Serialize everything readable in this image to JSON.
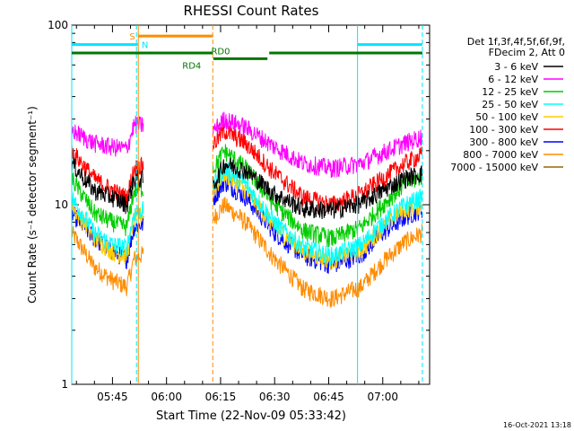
{
  "chart_data": {
    "type": "line",
    "title": "RHESSI Count Rates",
    "xlabel": "Start Time (22-Nov-09 05:33:42)",
    "ylabel": "Count Rate (s⁻¹ detector segment⁻¹)",
    "y_scale": "log",
    "ylim": [
      1,
      100
    ],
    "xlim": [
      "05:33:42",
      "07:13:00"
    ],
    "x_ticks": [
      "05:45",
      "06:00",
      "06:15",
      "06:30",
      "06:45",
      "07:00"
    ],
    "y_ticks": [
      "1",
      "10",
      "100"
    ],
    "grid": false,
    "legend_position": "top-right",
    "legend_header": [
      "Det 1f,3f,4f,5f,6f,9f,",
      "FDecim 2, Att 0"
    ],
    "timestamp": "16-Oct-2021 13:18",
    "gap_segments": [
      [
        "05:53:40",
        "06:12:50"
      ]
    ],
    "series": [
      {
        "name": "3 - 6 keV",
        "color": "#000000",
        "x": [
          "05:33:42",
          "05:40:00",
          "05:45:00",
          "05:49:00",
          "05:51:00",
          "06:13:10",
          "06:16:00",
          "06:22:00",
          "06:30:00",
          "06:38:00",
          "06:46:00",
          "06:54:00",
          "07:00:00",
          "07:06:00",
          "07:11:00"
        ],
        "y": [
          17,
          12,
          11,
          10,
          14,
          13,
          17,
          15.5,
          11.5,
          9.5,
          9.3,
          10.2,
          12,
          14,
          15
        ]
      },
      {
        "name": "6 - 12 keV",
        "color": "#ff00ff",
        "x": [
          "05:33:42",
          "05:40:00",
          "05:45:00",
          "05:49:00",
          "05:51:00",
          "06:13:10",
          "06:16:00",
          "06:22:00",
          "06:30:00",
          "06:38:00",
          "06:46:00",
          "06:54:00",
          "07:00:00",
          "07:06:00",
          "07:11:00"
        ],
        "y": [
          26,
          22,
          21,
          20.5,
          28,
          26,
          30,
          27,
          21,
          17,
          16,
          17,
          19.5,
          22,
          24
        ]
      },
      {
        "name": "12 - 25 keV",
        "color": "#00cc00",
        "x": [
          "05:33:42",
          "05:40:00",
          "05:45:00",
          "05:49:00",
          "05:51:00",
          "06:13:10",
          "06:16:00",
          "06:22:00",
          "06:30:00",
          "06:38:00",
          "06:46:00",
          "06:54:00",
          "07:00:00",
          "07:06:00",
          "07:11:00"
        ],
        "y": [
          14,
          9,
          8,
          7.5,
          12,
          16,
          20,
          16,
          10,
          7.2,
          6.5,
          7.5,
          10,
          13,
          14.5
        ]
      },
      {
        "name": "25 - 50 keV",
        "color": "#00ffff",
        "x": [
          "05:33:42",
          "05:40:00",
          "05:45:00",
          "05:49:00",
          "05:51:00",
          "06:13:10",
          "06:16:00",
          "06:22:00",
          "06:30:00",
          "06:38:00",
          "06:46:00",
          "06:54:00",
          "07:00:00",
          "07:06:00",
          "07:11:00"
        ],
        "y": [
          11,
          7,
          6,
          5.8,
          9,
          13,
          16,
          13,
          8,
          5.8,
          5.2,
          6,
          8,
          10,
          11
        ]
      },
      {
        "name": "50 - 100 keV",
        "color": "#ffcc00",
        "x": [
          "05:33:42",
          "05:40:00",
          "05:45:00",
          "05:49:00",
          "05:51:00",
          "06:13:10",
          "06:16:00",
          "06:22:00",
          "06:30:00",
          "06:38:00",
          "06:46:00",
          "06:54:00",
          "07:00:00",
          "07:06:00",
          "07:11:00"
        ],
        "y": [
          10,
          6.5,
          5.5,
          5.2,
          8.5,
          12,
          15,
          12,
          7.5,
          5.5,
          4.9,
          5.6,
          7.5,
          9.5,
          10
        ]
      },
      {
        "name": "100 - 300 keV",
        "color": "#ff0000",
        "x": [
          "05:33:42",
          "05:40:00",
          "05:45:00",
          "05:49:00",
          "05:51:00",
          "06:13:10",
          "06:16:00",
          "06:22:00",
          "06:30:00",
          "06:38:00",
          "06:46:00",
          "06:54:00",
          "07:00:00",
          "07:06:00",
          "07:11:00"
        ],
        "y": [
          20,
          14,
          12,
          11,
          16,
          22,
          26,
          22,
          15,
          11,
          10,
          11.5,
          14,
          17,
          19
        ]
      },
      {
        "name": "300 - 800 keV",
        "color": "#0000ff",
        "x": [
          "05:33:42",
          "05:40:00",
          "05:45:00",
          "05:49:00",
          "05:51:00",
          "06:13:10",
          "06:16:00",
          "06:22:00",
          "06:30:00",
          "06:38:00",
          "06:46:00",
          "06:54:00",
          "07:00:00",
          "07:06:00",
          "07:11:00"
        ],
        "y": [
          9,
          6.5,
          5.5,
          5,
          7.5,
          11,
          13.5,
          11,
          7,
          5.2,
          4.6,
          5.3,
          7,
          8.5,
          9.5
        ]
      },
      {
        "name": "800 - 7000 keV",
        "color": "#ff8c00",
        "x": [
          "05:33:42",
          "05:40:00",
          "05:45:00",
          "05:49:00",
          "05:51:00",
          "06:13:10",
          "06:16:00",
          "06:22:00",
          "06:30:00",
          "06:38:00",
          "06:46:00",
          "06:54:00",
          "07:00:00",
          "07:06:00",
          "07:11:00"
        ],
        "y": [
          7,
          4.5,
          3.8,
          3.5,
          5,
          8.5,
          10,
          8,
          5,
          3.4,
          3.0,
          3.5,
          4.8,
          6.2,
          7
        ]
      },
      {
        "name": "7000 - 15000 keV",
        "color": "#996600",
        "x": [],
        "y": []
      }
    ],
    "annotations": {
      "vlines": [
        {
          "x": "05:33:42",
          "color": "#00e5ff",
          "style": "solid"
        },
        {
          "x": "05:51:40",
          "color": "#00e5ff",
          "style": "dashed"
        },
        {
          "x": "05:52:10",
          "color": "#ff8c00",
          "style": "solid"
        },
        {
          "x": "06:12:50",
          "color": "#ff8c00",
          "style": "dashed"
        },
        {
          "x": "06:53:00",
          "color": "#00e5ff",
          "style": "solid"
        },
        {
          "x": "07:11:00",
          "color": "#00e5ff",
          "style": "dashed"
        }
      ],
      "bars": [
        {
          "x1": "05:33:42",
          "x2": "05:52:00",
          "y": 78,
          "color": "#00e5ff"
        },
        {
          "x1": "06:53:00",
          "x2": "07:11:00",
          "y": 78,
          "color": "#00e5ff"
        },
        {
          "x1": "05:52:10",
          "x2": "06:12:50",
          "y": 87,
          "color": "#ff8c00"
        },
        {
          "x1": "05:33:42",
          "x2": "06:12:50",
          "y": 70,
          "color": "#007700"
        },
        {
          "x1": "06:13:00",
          "x2": "06:28:00",
          "y": 65,
          "color": "#007700"
        },
        {
          "x1": "06:28:30",
          "x2": "07:11:00",
          "y": 70,
          "color": "#007700"
        }
      ],
      "labels": [
        {
          "text": "S",
          "x": "05:50:30",
          "y": 87,
          "color": "#ff8c00"
        },
        {
          "text": "N",
          "x": "05:54:00",
          "y": 78,
          "color": "#00e5ff"
        },
        {
          "text": "RD4",
          "x": "06:07:00",
          "y": 60,
          "color": "#007700"
        },
        {
          "text": "RD0",
          "x": "06:15:00",
          "y": 72,
          "color": "#007700"
        }
      ]
    }
  }
}
